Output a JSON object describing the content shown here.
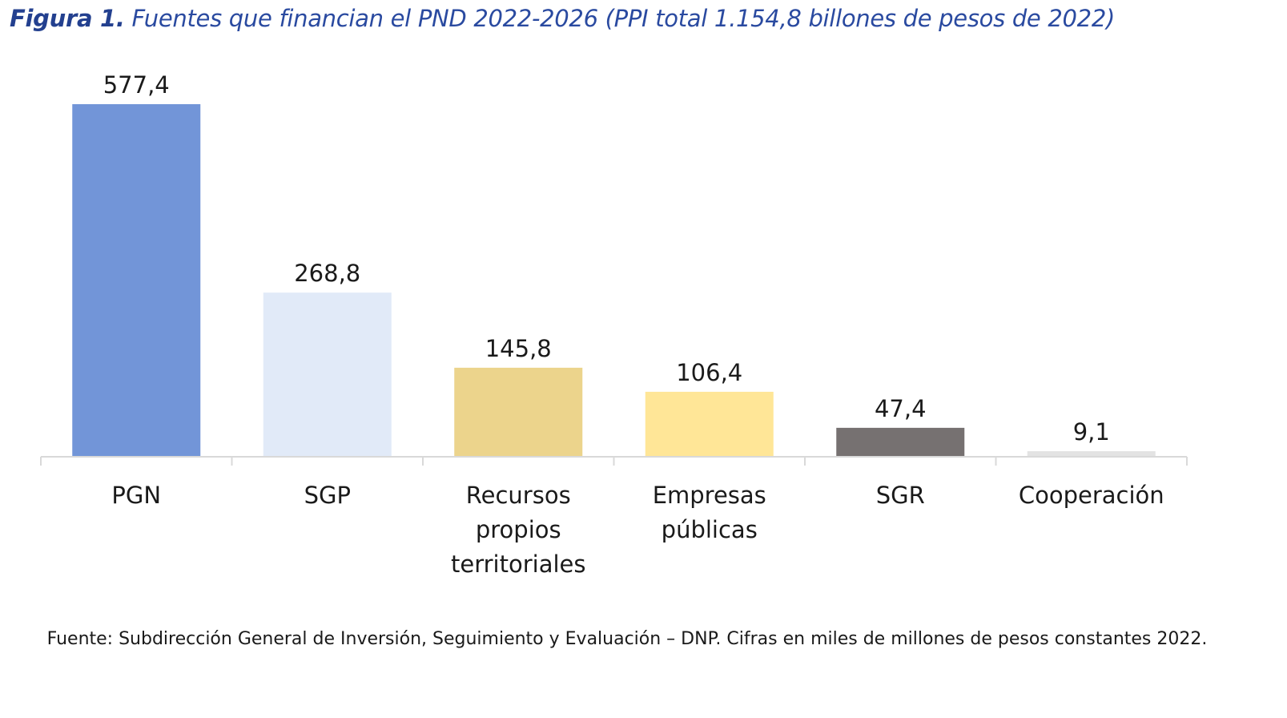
{
  "title": {
    "lead": "Figura 1.",
    "text": "Fuentes que financian el PND 2022-2026 (PPI total 1.154,8 billones de pesos de 2022)"
  },
  "source_note": "Fuente: Subdirección General de Inversión, Seguimiento y Evaluación – DNP. Cifras en miles de millones de pesos constantes 2022.",
  "chart_data": {
    "type": "bar",
    "title": "Figura 1. Fuentes que financian el PND 2022-2026 (PPI total 1.154,8 billones de pesos de 2022)",
    "xlabel": "",
    "ylabel": "",
    "categories": [
      [
        "PGN"
      ],
      [
        "SGP"
      ],
      [
        "Recursos",
        "propios",
        "territoriales"
      ],
      [
        "Empresas",
        "públicas"
      ],
      [
        "SGR"
      ],
      [
        "Cooperación"
      ]
    ],
    "values": [
      577.4,
      268.8,
      145.8,
      106.4,
      47.4,
      9.1
    ],
    "value_labels": [
      "577,4",
      "268,8",
      "145,8",
      "106,4",
      "47,4",
      "9,1"
    ],
    "colors": [
      "#7295d8",
      "#e1eaf8",
      "#ecd48c",
      "#ffe697",
      "#767171",
      "#e3e3e3"
    ],
    "ylim": [
      0,
      577.4
    ],
    "grid": false,
    "legend": "none",
    "axis_color": "#d9d9d9"
  }
}
